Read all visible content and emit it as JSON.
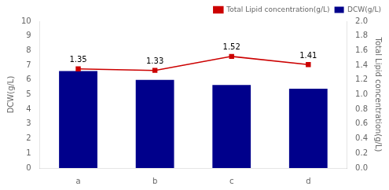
{
  "chart_data": {
    "type": "bar",
    "categories": [
      "a",
      "b",
      "c",
      "d"
    ],
    "series": [
      {
        "name": "DCW(g/L)",
        "type": "bar",
        "color": "#00008B",
        "values": [
          6.6,
          6.0,
          5.65,
          5.4
        ]
      },
      {
        "name": "Total Lipid concentration(g/L)",
        "type": "line",
        "color": "#CC0000",
        "marker": "square",
        "axis": "y2",
        "data_labels": true,
        "values": [
          1.35,
          1.33,
          1.52,
          1.41
        ]
      }
    ],
    "ylabel": "DCW(g/L)",
    "y2label": "Total Lipid concentration(g/L)",
    "ylim": [
      0,
      10
    ],
    "yticks": [
      0,
      1,
      2,
      3,
      4,
      5,
      6,
      7,
      8,
      9,
      10
    ],
    "y2lim": [
      0.0,
      2.0
    ],
    "y2ticks": [
      {
        "value": 0.0,
        "label": "0.0"
      },
      0.2,
      0.4,
      0.6,
      0.8,
      {
        "value": 1.0,
        "label": "1.0"
      },
      1.2,
      1.4,
      1.6,
      1.8,
      {
        "value": 2.0,
        "label": "2.0"
      }
    ],
    "grid": false,
    "legend": "upper right"
  }
}
